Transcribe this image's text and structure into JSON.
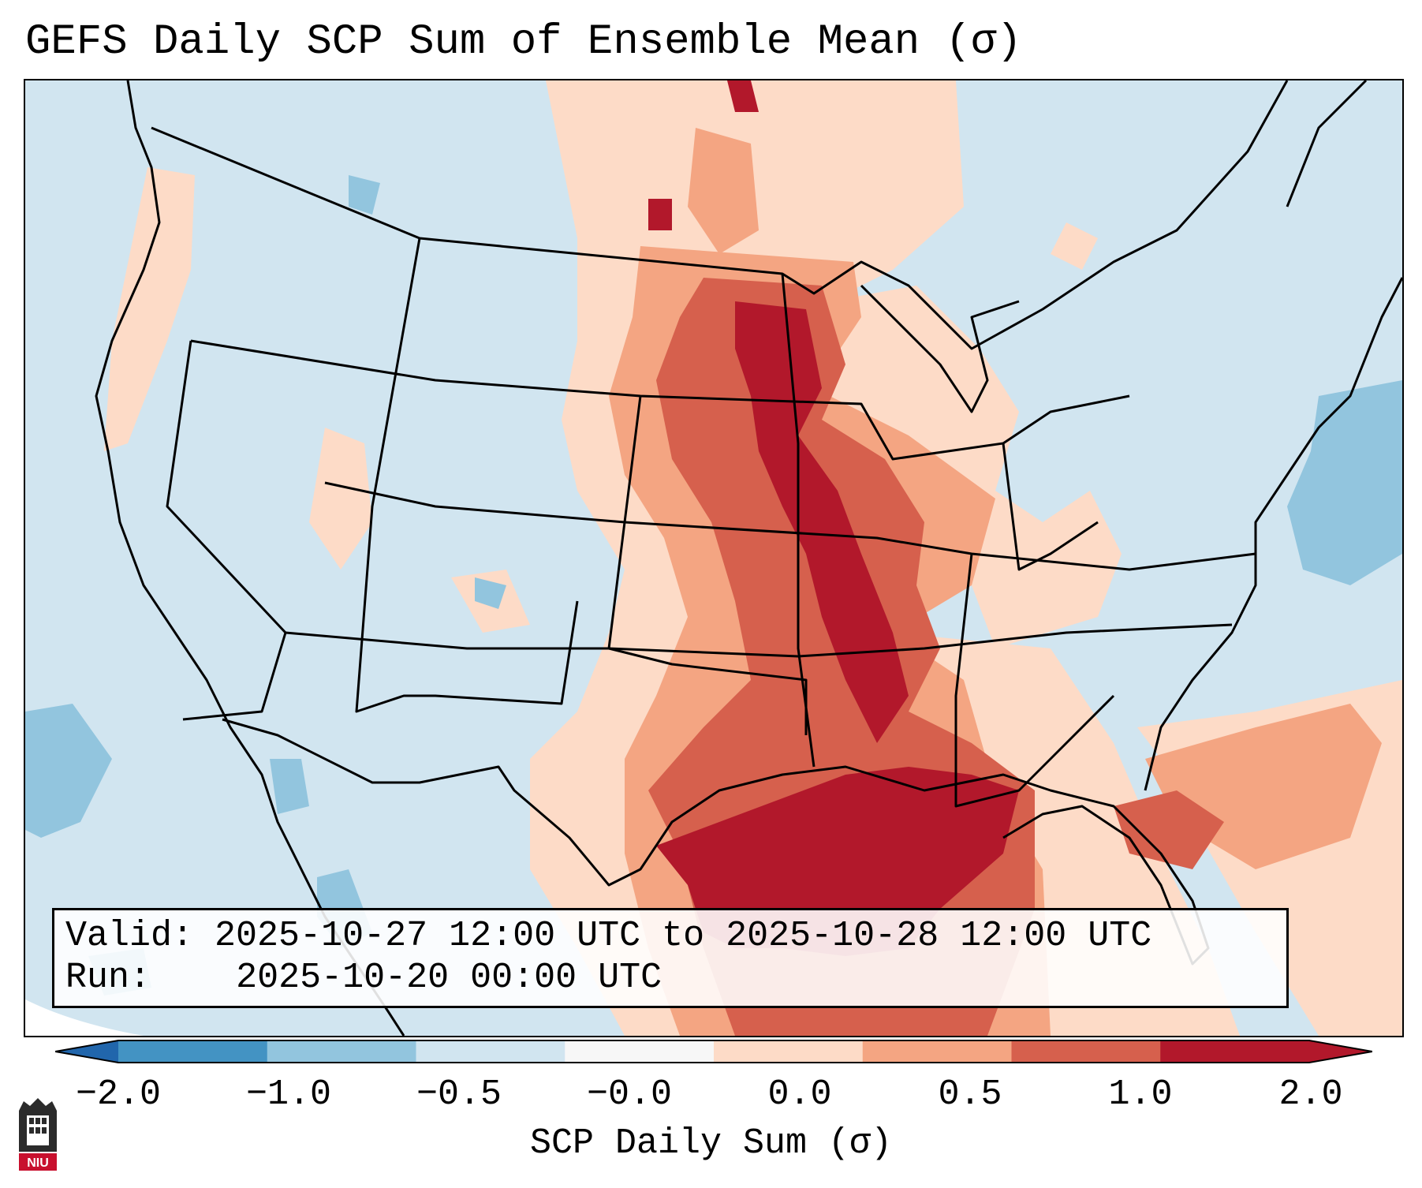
{
  "title": "GEFS Daily SCP Sum of Ensemble Mean (σ)",
  "info": {
    "valid_label": "Valid:",
    "valid_value": "2025-10-27 12:00 UTC to 2025-10-28 12:00 UTC",
    "run_label": "Run:",
    "run_value": "2025-10-20 00:00 UTC"
  },
  "colorbar": {
    "label": "SCP Daily Sum (σ)",
    "ticks": [
      "−2.0",
      "−1.0",
      "−0.5",
      "−0.0",
      "0.0",
      "0.5",
      "1.0",
      "2.0"
    ],
    "colors": [
      "#4393c3",
      "#92c5de",
      "#d1e5f0",
      "#f7f7f7",
      "#fddbc7",
      "#f4a582",
      "#d6604d",
      "#b2182b"
    ],
    "extend": "both"
  },
  "map": {
    "background_color": "#d1e5f0",
    "fields": [
      {
        "name": "gulf-coast-max",
        "level": "2.0+",
        "color": "#b2182b"
      },
      {
        "name": "mississippi-valley-high",
        "level": "1.0 to 2.0",
        "color": "#d6604d"
      },
      {
        "name": "plains-moderate",
        "level": "0.5 to 1.0",
        "color": "#f4a582"
      },
      {
        "name": "eastern-light",
        "level": "0.0 to 0.5",
        "color": "#fddbc7"
      },
      {
        "name": "negative-areas",
        "level": "−1.0 to −0.5",
        "color": "#92c5de"
      }
    ]
  },
  "logo": {
    "text": "NIU"
  }
}
